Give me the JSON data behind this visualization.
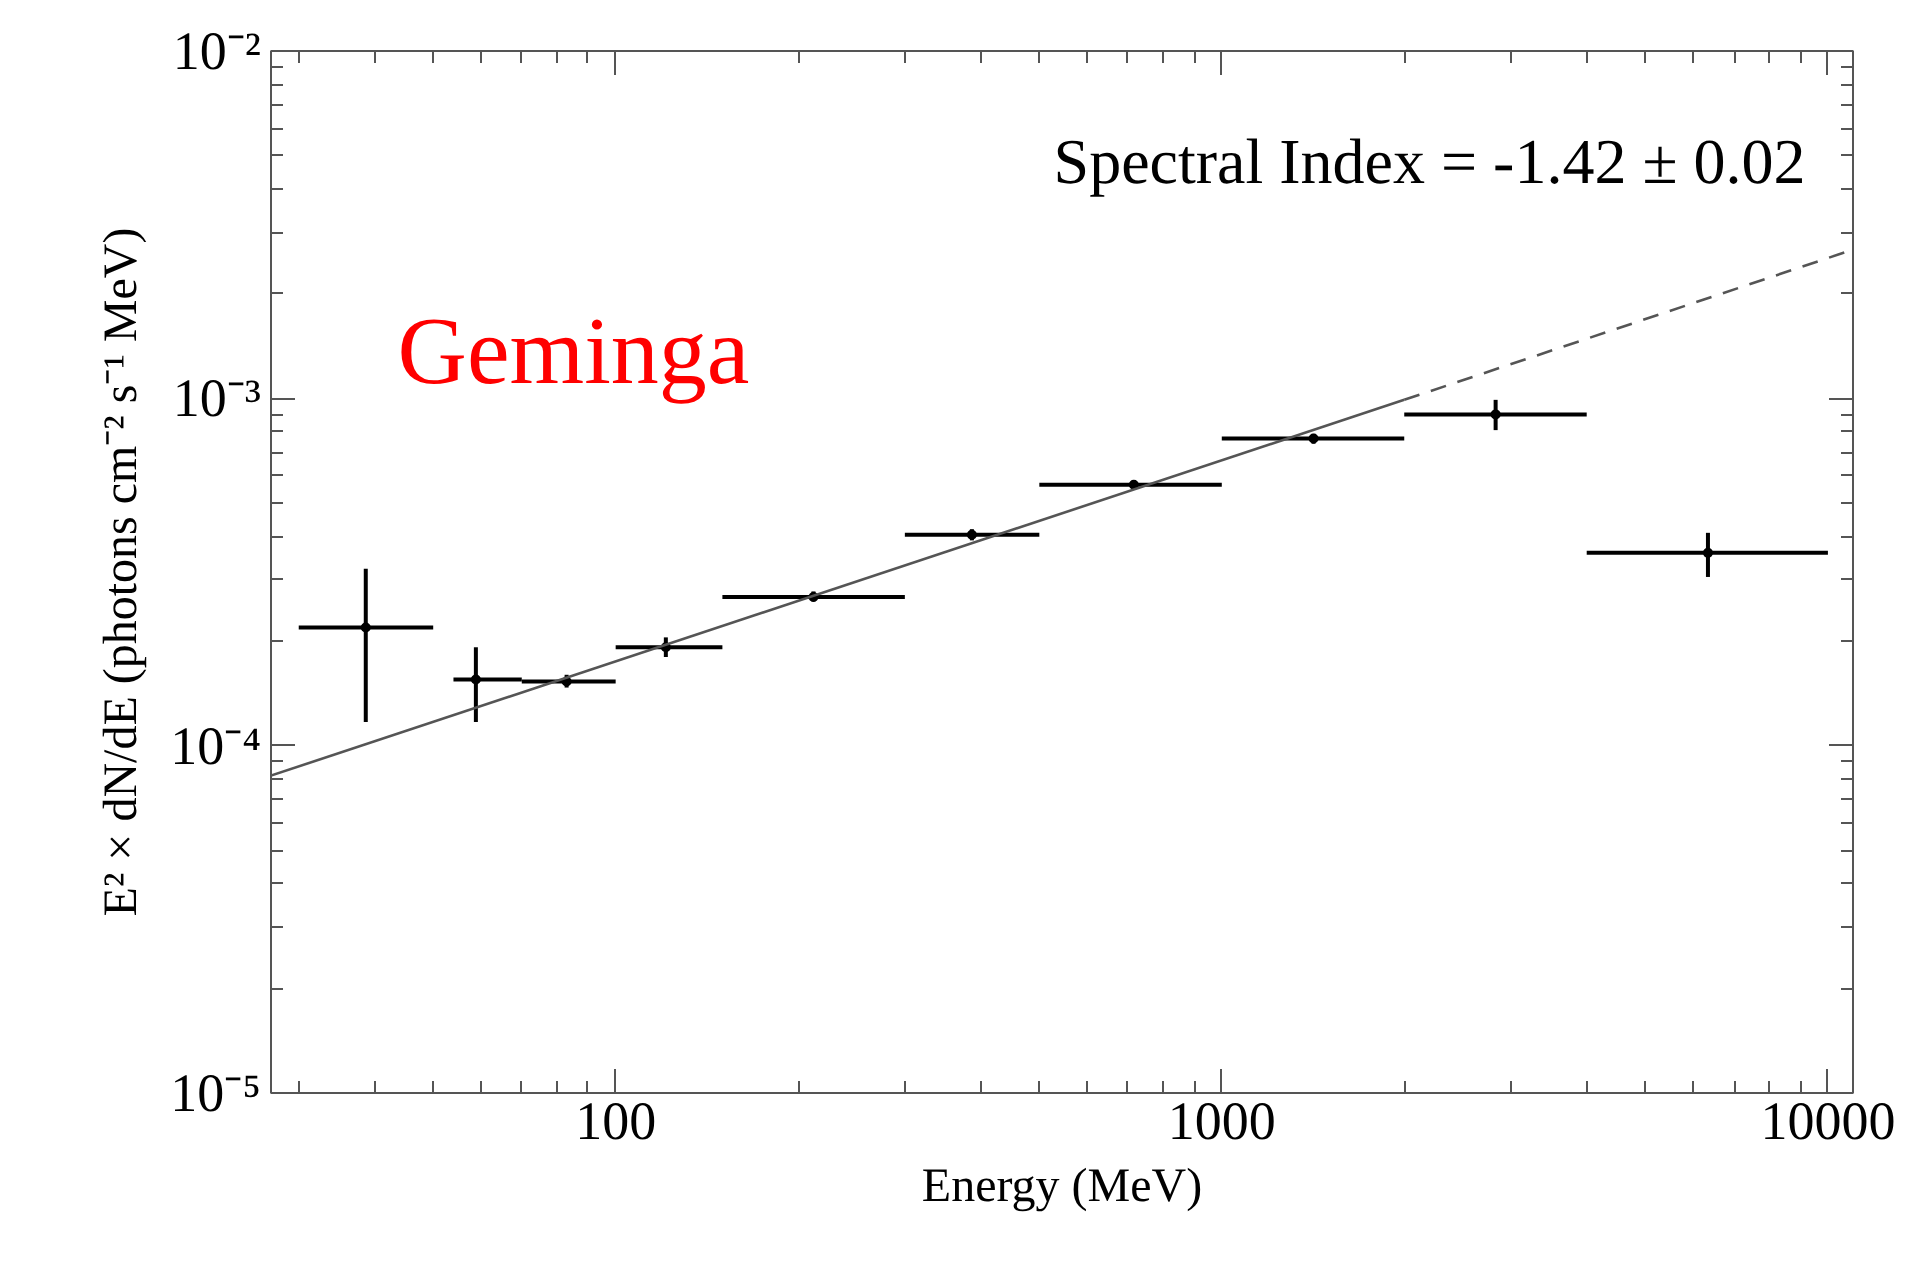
{
  "chart_data": {
    "type": "scatter",
    "xlabel": "Energy (MeV)",
    "ylabel": "E² × dN/dE (photons cm⁻² s⁻¹ MeV)",
    "annotations": [
      "Spectral Index = -1.42 ± 0.02",
      "Geminga"
    ],
    "log": "xy",
    "grid": false,
    "xlim": [
      27,
      11000
    ],
    "ylim": [
      1e-05,
      0.01
    ],
    "xticks": [
      100,
      1000,
      10000
    ],
    "yticks": [
      {
        "value": 1e-05,
        "label": "10⁻⁵"
      },
      {
        "value": 0.0001,
        "label": "10⁻⁴"
      },
      {
        "value": 0.001,
        "label": "10⁻³"
      },
      {
        "value": 0.01,
        "label": "10⁻²"
      }
    ],
    "series": [
      {
        "marker": "circle",
        "color": "#000000",
        "x": [
          38.7,
          58.8,
          83,
          121,
          212,
          387,
          716,
          1417,
          2830,
          6340
        ],
        "values": [
          0.000219,
          0.000155,
          0.000153,
          0.000192,
          0.000268,
          0.000405,
          0.000564,
          0.000766,
          0.000899,
          0.000359
        ],
        "errors": [
          [
            0.000117,
            0.000323
          ],
          [
            0.000117,
            0.000192
          ],
          [
            0.000147,
            0.00016
          ],
          [
            0.00018,
            0.000205
          ],
          [
            0.00026,
            0.000278
          ],
          [
            0.00039,
            0.00042
          ],
          [
            0.00055,
            0.00058
          ],
          [
            0.00074,
            0.00079
          ],
          [
            0.00081,
            0.00099
          ],
          [
            0.000306,
            0.00041
          ]
        ],
        "xerrors": [
          [
            30,
            50
          ],
          [
            54,
            70
          ],
          [
            70,
            100
          ],
          [
            100,
            150
          ],
          [
            150,
            300
          ],
          [
            300,
            500
          ],
          [
            500,
            1000
          ],
          [
            1000,
            2000
          ],
          [
            2000,
            4000
          ],
          [
            4000,
            10000
          ]
        ]
      },
      {
        "type": "line",
        "line_style": "solid",
        "color": "#555555",
        "x": [
          27,
          2000
        ],
        "values": [
          8.2e-05,
          0.00099
        ]
      },
      {
        "type": "line",
        "line_style": "dashed",
        "color": "#555555",
        "x": [
          2000,
          11000
        ],
        "values": [
          0.00099,
          0.00268
        ]
      }
    ]
  }
}
